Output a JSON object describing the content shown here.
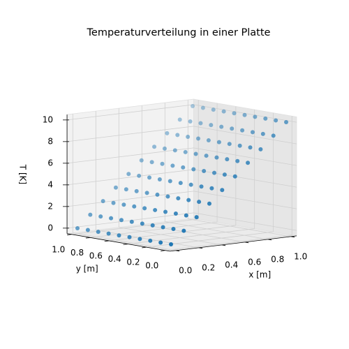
{
  "chart_data": {
    "type": "scatter3d",
    "title": "Temperaturverteilung in einer Platte",
    "xlabel": "x [m]",
    "ylabel": "y [m]",
    "zlabel": "T [K]",
    "color": "#1f77b4",
    "xlim": [
      -0.05,
      1.05
    ],
    "ylim": [
      -0.05,
      1.05
    ],
    "zlim": [
      -0.5,
      10.5
    ],
    "xticks": [
      {
        "value": 0,
        "label": "0.0"
      },
      {
        "value": 0.2,
        "label": "0.2"
      },
      {
        "value": 0.4,
        "label": "0.4"
      },
      {
        "value": 0.6,
        "label": "0.6"
      },
      {
        "value": 0.8,
        "label": "0.8"
      },
      {
        "value": 1,
        "label": "1.0"
      }
    ],
    "yticks": [
      {
        "value": 0,
        "label": "0.0"
      },
      {
        "value": 0.2,
        "label": "0.2"
      },
      {
        "value": 0.4,
        "label": "0.4"
      },
      {
        "value": 0.6,
        "label": "0.6"
      },
      {
        "value": 0.8,
        "label": "0.8"
      },
      {
        "value": 1,
        "label": "1.0"
      }
    ],
    "zticks": [
      0,
      2,
      4,
      6,
      8,
      10
    ],
    "grid": true,
    "x": [
      0,
      0,
      0,
      0,
      0,
      0,
      0,
      0,
      0,
      0,
      0.111,
      0.111,
      0.111,
      0.111,
      0.111,
      0.111,
      0.111,
      0.111,
      0.111,
      0.111,
      0.222,
      0.222,
      0.222,
      0.222,
      0.222,
      0.222,
      0.222,
      0.222,
      0.222,
      0.222,
      0.333,
      0.333,
      0.333,
      0.333,
      0.333,
      0.333,
      0.333,
      0.333,
      0.333,
      0.333,
      0.444,
      0.444,
      0.444,
      0.444,
      0.444,
      0.444,
      0.444,
      0.444,
      0.444,
      0.444,
      0.556,
      0.556,
      0.556,
      0.556,
      0.556,
      0.556,
      0.556,
      0.556,
      0.556,
      0.556,
      0.667,
      0.667,
      0.667,
      0.667,
      0.667,
      0.667,
      0.667,
      0.667,
      0.667,
      0.667,
      0.778,
      0.778,
      0.778,
      0.778,
      0.778,
      0.778,
      0.778,
      0.778,
      0.778,
      0.778,
      0.889,
      0.889,
      0.889,
      0.889,
      0.889,
      0.889,
      0.889,
      0.889,
      0.889,
      0.889,
      1,
      1,
      1,
      1,
      1,
      1,
      1,
      1,
      1,
      1
    ],
    "y": [
      0,
      0.111,
      0.222,
      0.333,
      0.444,
      0.556,
      0.667,
      0.778,
      0.889,
      1,
      0,
      0.111,
      0.222,
      0.333,
      0.444,
      0.556,
      0.667,
      0.778,
      0.889,
      1,
      0,
      0.111,
      0.222,
      0.333,
      0.444,
      0.556,
      0.667,
      0.778,
      0.889,
      1,
      0,
      0.111,
      0.222,
      0.333,
      0.444,
      0.556,
      0.667,
      0.778,
      0.889,
      1,
      0,
      0.111,
      0.222,
      0.333,
      0.444,
      0.556,
      0.667,
      0.778,
      0.889,
      1,
      0,
      0.111,
      0.222,
      0.333,
      0.444,
      0.556,
      0.667,
      0.778,
      0.889,
      1,
      0,
      0.111,
      0.222,
      0.333,
      0.444,
      0.556,
      0.667,
      0.778,
      0.889,
      1,
      0,
      0.111,
      0.222,
      0.333,
      0.444,
      0.556,
      0.667,
      0.778,
      0.889,
      1,
      0,
      0.111,
      0.222,
      0.333,
      0.444,
      0.556,
      0.667,
      0.778,
      0.889,
      1,
      0,
      0.111,
      0.222,
      0.333,
      0.444,
      0.556,
      0.667,
      0.778,
      0.889,
      1
    ],
    "z": [
      0,
      0,
      0,
      0,
      0,
      0,
      0,
      0,
      0,
      0,
      1.11,
      1.11,
      1.11,
      1.11,
      1.11,
      1.11,
      1.11,
      1.11,
      1.11,
      1.11,
      2.22,
      2.22,
      2.22,
      2.22,
      2.22,
      2.22,
      2.22,
      2.22,
      2.22,
      2.22,
      3.33,
      3.33,
      3.33,
      3.33,
      3.33,
      3.33,
      3.33,
      3.33,
      3.33,
      3.33,
      4.44,
      4.44,
      4.44,
      4.44,
      4.44,
      4.44,
      4.44,
      4.44,
      4.44,
      4.44,
      5.56,
      5.56,
      5.56,
      5.56,
      5.56,
      5.56,
      5.56,
      5.56,
      5.56,
      5.56,
      6.67,
      6.67,
      6.67,
      6.67,
      6.67,
      6.67,
      6.67,
      6.67,
      6.67,
      6.67,
      7.78,
      7.78,
      7.78,
      7.78,
      7.78,
      7.78,
      7.78,
      7.78,
      7.78,
      7.78,
      8.89,
      8.89,
      8.89,
      8.89,
      8.89,
      8.89,
      8.89,
      8.89,
      8.89,
      8.89,
      10,
      10,
      10,
      10,
      10,
      10,
      10,
      10,
      10,
      10
    ]
  }
}
